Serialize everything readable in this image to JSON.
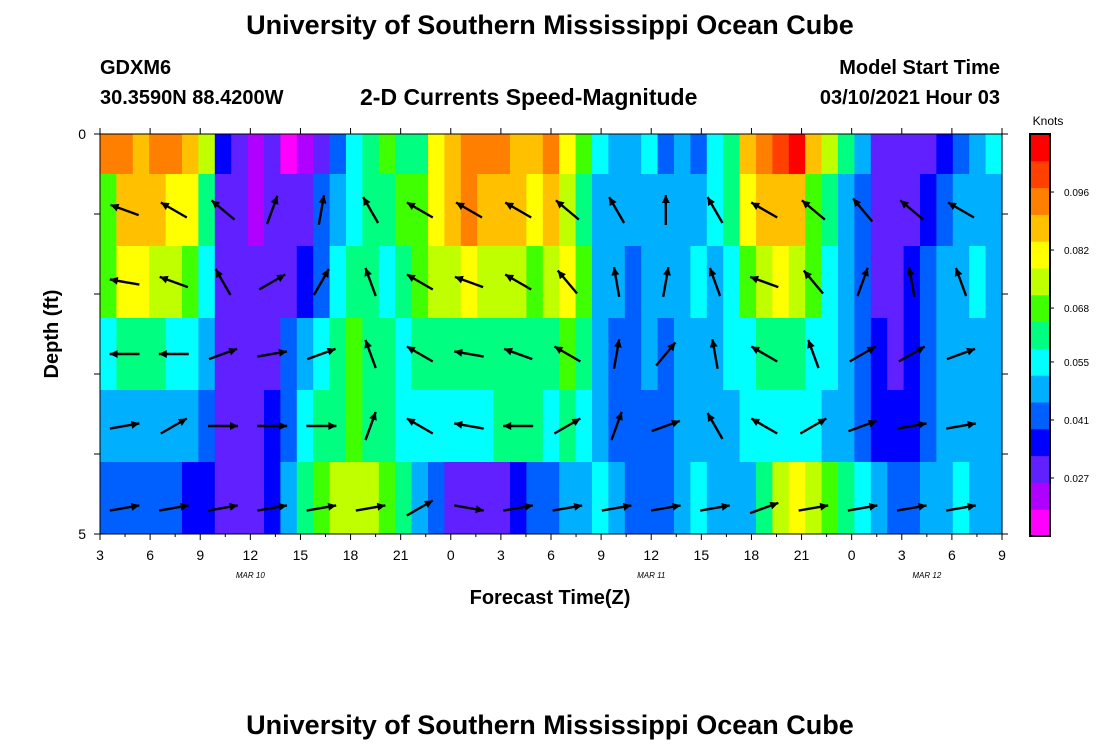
{
  "header": {
    "title_top": "University of Southern Mississippi Ocean Cube",
    "station_id": "GDXM6",
    "coordinates": "30.3590N 88.4200W",
    "subtitle": "2-D Currents Speed-Magnitude",
    "model_start_label": "Model Start Time",
    "model_start_value": "03/10/2021 Hour 03",
    "title_bottom": "University of Southern Mississippi Ocean Cube"
  },
  "chart_data": {
    "type": "heatmap",
    "title": "2-D Currents Speed-Magnitude",
    "xlabel": "Forecast Time(Z)",
    "ylabel": "Depth (ft)",
    "x_tick_labels": [
      "3",
      "6",
      "9",
      "12",
      "15",
      "18",
      "21",
      "0",
      "3",
      "6",
      "9",
      "12",
      "15",
      "18",
      "21",
      "0",
      "3",
      "6",
      "9"
    ],
    "y_tick_labels": [
      "0",
      "5"
    ],
    "y_range": [
      0,
      5
    ],
    "date_labels": [
      {
        "label": "MAR 10",
        "hour_index": 3
      },
      {
        "label": "MAR 11",
        "hour_index": 11
      },
      {
        "label": "MAR 12",
        "hour_index": 16.5
      }
    ],
    "colorbar": {
      "unit": "Knots",
      "tick_labels": [
        "0.096",
        "0.082",
        "0.068",
        "0.055",
        "0.041",
        "0.027"
      ],
      "tick_values": [
        0.096,
        0.082,
        0.068,
        0.055,
        0.041,
        0.027
      ],
      "range": [
        0.013,
        0.11
      ],
      "colors": [
        "#ff00ff",
        "#b000ff",
        "#6020ff",
        "#0000ff",
        "#0060ff",
        "#00b0ff",
        "#00ffff",
        "#00ff80",
        "#40ff00",
        "#c0ff00",
        "#ffff00",
        "#ffc000",
        "#ff8000",
        "#ff4000",
        "#ff0000"
      ]
    },
    "x_hours": [
      3,
      4,
      5,
      6,
      7,
      8,
      9,
      10,
      11,
      12,
      13,
      14,
      15,
      16,
      17,
      18,
      19,
      20,
      21,
      22,
      23,
      24,
      25,
      26,
      27,
      28,
      29,
      30,
      31,
      32,
      33,
      34,
      35,
      36,
      37,
      38,
      39,
      40,
      41,
      42,
      43,
      44,
      45,
      46,
      47,
      48,
      49,
      50,
      51,
      52,
      53,
      54,
      55,
      56,
      57
    ],
    "row_depths": [
      0,
      1,
      2,
      3,
      4,
      5
    ],
    "speeds": [
      [
        0.094,
        0.096,
        0.09,
        0.092,
        0.093,
        0.086,
        0.074,
        0.038,
        0.032,
        0.024,
        0.026,
        0.013,
        0.024,
        0.032,
        0.04,
        0.052,
        0.06,
        0.07,
        0.064,
        0.06,
        0.078,
        0.09,
        0.094,
        0.094,
        0.092,
        0.088,
        0.086,
        0.094,
        0.082,
        0.07,
        0.055,
        0.05,
        0.048,
        0.052,
        0.042,
        0.05,
        0.044,
        0.052,
        0.06,
        0.088,
        0.094,
        0.098,
        0.11,
        0.09,
        0.076,
        0.064,
        0.05,
        0.028,
        0.026,
        0.03,
        0.032,
        0.038,
        0.044,
        0.048,
        0.052
      ],
      [
        0.07,
        0.088,
        0.09,
        0.088,
        0.082,
        0.08,
        0.06,
        0.03,
        0.026,
        0.024,
        0.026,
        0.028,
        0.032,
        0.04,
        0.05,
        0.056,
        0.06,
        0.062,
        0.066,
        0.07,
        0.08,
        0.09,
        0.092,
        0.09,
        0.088,
        0.086,
        0.084,
        0.086,
        0.076,
        0.06,
        0.05,
        0.048,
        0.046,
        0.05,
        0.046,
        0.048,
        0.05,
        0.054,
        0.06,
        0.08,
        0.088,
        0.09,
        0.088,
        0.07,
        0.06,
        0.05,
        0.04,
        0.03,
        0.026,
        0.03,
        0.034,
        0.04,
        0.048,
        0.05,
        0.048
      ],
      [
        0.066,
        0.078,
        0.08,
        0.076,
        0.072,
        0.07,
        0.055,
        0.03,
        0.026,
        0.028,
        0.03,
        0.032,
        0.036,
        0.044,
        0.056,
        0.062,
        0.06,
        0.058,
        0.062,
        0.066,
        0.072,
        0.076,
        0.078,
        0.076,
        0.074,
        0.072,
        0.07,
        0.076,
        0.08,
        0.066,
        0.05,
        0.046,
        0.044,
        0.048,
        0.046,
        0.05,
        0.052,
        0.05,
        0.056,
        0.068,
        0.076,
        0.08,
        0.076,
        0.066,
        0.058,
        0.05,
        0.04,
        0.032,
        0.03,
        0.034,
        0.04,
        0.046,
        0.05,
        0.052,
        0.048
      ],
      [
        0.054,
        0.06,
        0.062,
        0.06,
        0.058,
        0.056,
        0.048,
        0.03,
        0.028,
        0.03,
        0.032,
        0.04,
        0.05,
        0.058,
        0.064,
        0.066,
        0.064,
        0.06,
        0.058,
        0.06,
        0.062,
        0.06,
        0.06,
        0.062,
        0.064,
        0.062,
        0.06,
        0.062,
        0.066,
        0.06,
        0.048,
        0.044,
        0.042,
        0.046,
        0.044,
        0.048,
        0.05,
        0.05,
        0.052,
        0.058,
        0.062,
        0.064,
        0.062,
        0.058,
        0.054,
        0.048,
        0.04,
        0.034,
        0.032,
        0.036,
        0.042,
        0.048,
        0.05,
        0.048,
        0.046
      ],
      [
        0.046,
        0.048,
        0.05,
        0.05,
        0.048,
        0.046,
        0.042,
        0.03,
        0.028,
        0.03,
        0.034,
        0.042,
        0.054,
        0.06,
        0.064,
        0.066,
        0.064,
        0.062,
        0.058,
        0.056,
        0.058,
        0.056,
        0.054,
        0.056,
        0.06,
        0.062,
        0.06,
        0.058,
        0.06,
        0.056,
        0.046,
        0.042,
        0.04,
        0.044,
        0.042,
        0.046,
        0.048,
        0.046,
        0.048,
        0.052,
        0.056,
        0.058,
        0.056,
        0.052,
        0.05,
        0.046,
        0.04,
        0.036,
        0.034,
        0.038,
        0.044,
        0.048,
        0.05,
        0.048,
        0.046
      ],
      [
        0.04,
        0.04,
        0.042,
        0.04,
        0.04,
        0.038,
        0.036,
        0.03,
        0.028,
        0.03,
        0.034,
        0.05,
        0.06,
        0.07,
        0.074,
        0.076,
        0.074,
        0.068,
        0.06,
        0.05,
        0.04,
        0.03,
        0.026,
        0.028,
        0.032,
        0.036,
        0.04,
        0.044,
        0.046,
        0.05,
        0.052,
        0.048,
        0.044,
        0.04,
        0.044,
        0.048,
        0.052,
        0.05,
        0.048,
        0.05,
        0.06,
        0.072,
        0.08,
        0.076,
        0.068,
        0.06,
        0.052,
        0.046,
        0.04,
        0.042,
        0.046,
        0.05,
        0.052,
        0.05,
        0.048
      ]
    ],
    "vector_hours": [
      4,
      7,
      10,
      13,
      16,
      19,
      22,
      25,
      28,
      31,
      34,
      37,
      40,
      43,
      46,
      49,
      52,
      55
    ],
    "vector_rows": [
      1,
      2,
      3,
      4,
      5
    ],
    "vectors_deg": [
      [
        290,
        300,
        310,
        20,
        10,
        330,
        300,
        300,
        300,
        310,
        330,
        0,
        330,
        300,
        310,
        320,
        310,
        300
      ],
      [
        280,
        290,
        330,
        60,
        30,
        340,
        300,
        290,
        300,
        320,
        350,
        10,
        340,
        290,
        320,
        20,
        350,
        340
      ],
      [
        270,
        270,
        70,
        80,
        70,
        340,
        300,
        280,
        290,
        300,
        10,
        40,
        350,
        300,
        340,
        60,
        60,
        70
      ],
      [
        80,
        60,
        90,
        90,
        90,
        20,
        300,
        280,
        270,
        60,
        20,
        70,
        330,
        300,
        60,
        70,
        80,
        80
      ],
      [
        80,
        80,
        80,
        80,
        80,
        80,
        60,
        100,
        80,
        80,
        80,
        80,
        80,
        70,
        80,
        80,
        80,
        80
      ]
    ]
  }
}
